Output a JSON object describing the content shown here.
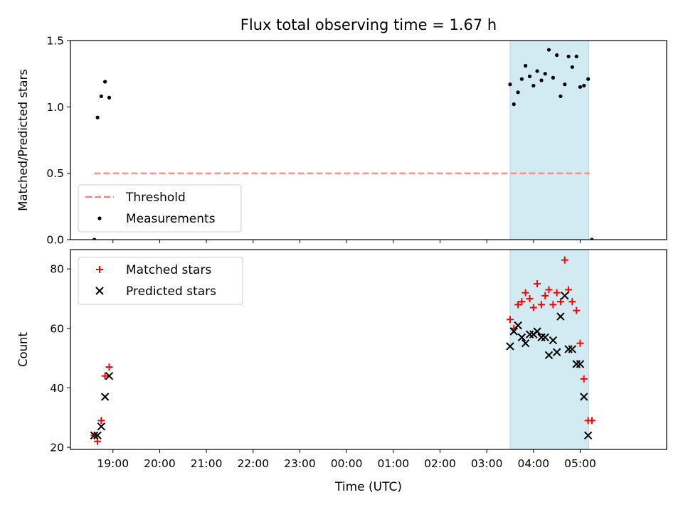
{
  "title": "Flux total observing time = 1.67 h",
  "xlabel": "Time (UTC)",
  "x_ticks": [
    "19:00",
    "20:00",
    "21:00",
    "22:00",
    "23:00",
    "00:00",
    "01:00",
    "02:00",
    "03:00",
    "04:00",
    "05:00"
  ],
  "colors": {
    "shade": "#add8e6",
    "threshold": "#ff7f7f",
    "matched": "#ff0000",
    "predicted": "#000000",
    "measurement": "#000000"
  },
  "chart_data": [
    {
      "type": "scatter",
      "ylabel": "Matched/Predicted stars",
      "xunit": "hours since 18:00 UTC",
      "xlim": [
        0.09,
        12.85
      ],
      "ylim": [
        0,
        1.5
      ],
      "y_ticks": [
        "0.0",
        "0.5",
        "1.0",
        "1.5"
      ],
      "observing_window": [
        9.5,
        11.18
      ],
      "threshold": {
        "label": "Threshold",
        "y": 0.5,
        "x": [
          0.6,
          11.2
        ]
      },
      "legend": {
        "position": "lower-left",
        "entries": [
          "Threshold",
          "Measurements"
        ]
      },
      "series": [
        {
          "name": "Measurements",
          "points": [
            [
              0.6,
              0.0
            ],
            [
              0.67,
              0.92
            ],
            [
              0.75,
              1.08
            ],
            [
              0.83,
              1.19
            ],
            [
              0.92,
              1.07
            ],
            [
              9.5,
              1.17
            ],
            [
              9.58,
              1.02
            ],
            [
              9.67,
              1.11
            ],
            [
              9.75,
              1.21
            ],
            [
              9.83,
              1.31
            ],
            [
              9.92,
              1.23
            ],
            [
              10.0,
              1.16
            ],
            [
              10.08,
              1.27
            ],
            [
              10.17,
              1.2
            ],
            [
              10.25,
              1.25
            ],
            [
              10.33,
              1.43
            ],
            [
              10.42,
              1.22
            ],
            [
              10.5,
              1.39
            ],
            [
              10.58,
              1.08
            ],
            [
              10.67,
              1.17
            ],
            [
              10.75,
              1.38
            ],
            [
              10.83,
              1.3
            ],
            [
              10.92,
              1.38
            ],
            [
              11.0,
              1.15
            ],
            [
              11.08,
              1.16
            ],
            [
              11.17,
              1.21
            ],
            [
              11.25,
              0.0
            ]
          ]
        }
      ]
    },
    {
      "type": "scatter",
      "ylabel": "Count",
      "xunit": "hours since 18:00 UTC",
      "xlim": [
        0.09,
        12.85
      ],
      "ylim": [
        19.3,
        86.5
      ],
      "y_ticks": [
        "20",
        "40",
        "60",
        "80"
      ],
      "observing_window": [
        9.5,
        11.18
      ],
      "legend": {
        "position": "upper-left",
        "entries": [
          "Matched stars",
          "Predicted stars"
        ]
      },
      "series": [
        {
          "name": "Matched stars",
          "marker": "plus",
          "points": [
            [
              0.6,
              24
            ],
            [
              0.67,
              22
            ],
            [
              0.75,
              29
            ],
            [
              0.83,
              44
            ],
            [
              0.92,
              47
            ],
            [
              9.5,
              63
            ],
            [
              9.58,
              60
            ],
            [
              9.67,
              68
            ],
            [
              9.75,
              69
            ],
            [
              9.83,
              72
            ],
            [
              9.92,
              70
            ],
            [
              10.0,
              67
            ],
            [
              10.08,
              75
            ],
            [
              10.17,
              68
            ],
            [
              10.25,
              71
            ],
            [
              10.33,
              73
            ],
            [
              10.42,
              68
            ],
            [
              10.5,
              72
            ],
            [
              10.58,
              69
            ],
            [
              10.67,
              83
            ],
            [
              10.75,
              73
            ],
            [
              10.83,
              69
            ],
            [
              10.92,
              66
            ],
            [
              11.0,
              55
            ],
            [
              11.08,
              43
            ],
            [
              11.17,
              29
            ],
            [
              11.25,
              29
            ]
          ]
        },
        {
          "name": "Predicted stars",
          "marker": "x",
          "points": [
            [
              0.6,
              24
            ],
            [
              0.67,
              24
            ],
            [
              0.75,
              27
            ],
            [
              0.83,
              37
            ],
            [
              0.92,
              44
            ],
            [
              9.5,
              54
            ],
            [
              9.58,
              59
            ],
            [
              9.67,
              61
            ],
            [
              9.75,
              57
            ],
            [
              9.83,
              55
            ],
            [
              9.92,
              58
            ],
            [
              10.0,
              58
            ],
            [
              10.08,
              59
            ],
            [
              10.17,
              57
            ],
            [
              10.25,
              57
            ],
            [
              10.33,
              51
            ],
            [
              10.42,
              56
            ],
            [
              10.5,
              52
            ],
            [
              10.58,
              64
            ],
            [
              10.67,
              71
            ],
            [
              10.75,
              53
            ],
            [
              10.83,
              53
            ],
            [
              10.92,
              48
            ],
            [
              11.0,
              48
            ],
            [
              11.08,
              37
            ],
            [
              11.17,
              24
            ]
          ]
        }
      ]
    }
  ]
}
